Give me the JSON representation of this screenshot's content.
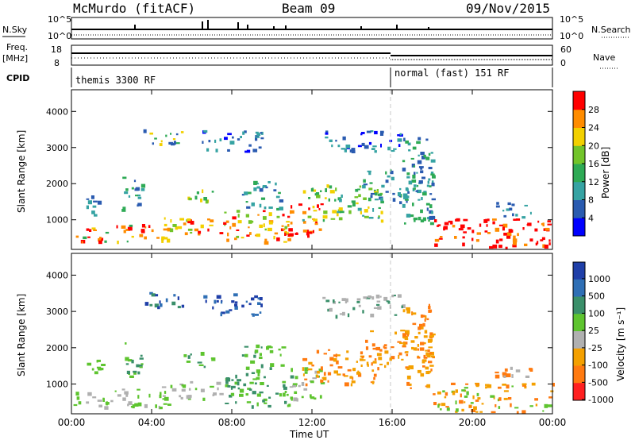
{
  "header": {
    "station": "McMurdo (fitACF)",
    "beam": "Beam 09",
    "date": "09/Nov/2015"
  },
  "aux": {
    "nsky_label": "N.Sky",
    "nsky_ticks": [
      "10^5",
      "10^0"
    ],
    "nsearch_label": "N.Search",
    "freq_label": "Freq.",
    "freq_unit": "[MHz]",
    "freq_ticks": [
      "18",
      "8"
    ],
    "nave_label": "Nave",
    "nave_ticks": [
      "60",
      "0"
    ],
    "cpid_label": "CPID",
    "cpid_1": "themis 3300 RF",
    "cpid_2": "normal (fast) 151 RF"
  },
  "chart_data": [
    {
      "type": "heatmap",
      "panel": "power",
      "ylabel": "Slant Range [km]",
      "colorbar_label": "Power [dB]",
      "colorbar_ticks": [
        "4",
        "8",
        "12",
        "16",
        "20",
        "24",
        "28"
      ],
      "colorbar_range": [
        0,
        32
      ],
      "x_ticks": [
        "00:00",
        "04:00",
        "08:00",
        "12:00",
        "16:00",
        "20:00",
        "00:00"
      ],
      "xlim_hours": [
        0,
        24
      ],
      "ylim_km": [
        180,
        4600
      ],
      "y_ticks": [
        1000,
        2000,
        3000,
        4000
      ],
      "colors": [
        "#0000ff",
        "#2a5bb0",
        "#36a3a3",
        "#2eaa55",
        "#72c42a",
        "#f2d000",
        "#ff8c00",
        "#ff0000"
      ]
    },
    {
      "type": "heatmap",
      "panel": "velocity",
      "ylabel": "Slant Range [km]",
      "colorbar_label": "Velocity [m s⁻¹]",
      "colorbar_ticks": [
        "1000",
        "500",
        "100",
        "25",
        "-25",
        "-100",
        "-500",
        "-1000"
      ],
      "x_ticks": [
        "00:00",
        "04:00",
        "08:00",
        "12:00",
        "16:00",
        "20:00",
        "00:00"
      ],
      "xlim_hours": [
        0,
        24
      ],
      "ylim_km": [
        180,
        4600
      ],
      "y_ticks": [
        1000,
        2000,
        3000,
        4000
      ],
      "colors": [
        "#1f3fa8",
        "#2f6fb5",
        "#3a8f6a",
        "#5ec42f",
        "#b0b0b0",
        "#f4a000",
        "#ff7a10",
        "#ff2020"
      ]
    }
  ],
  "xlabel": "Time UT"
}
